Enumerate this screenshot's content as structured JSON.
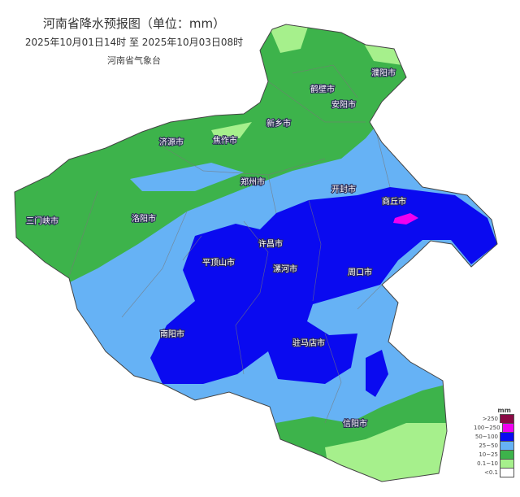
{
  "header": {
    "title": "河南省降水预报图（单位：mm）",
    "period": "2025年10月01日14时  至  2025年10月03日08时",
    "issuer": "河南省气象台"
  },
  "legend": {
    "unit": "mm",
    "items": [
      {
        "label": ">250",
        "color": "#8a0a45"
      },
      {
        "label": "100~250",
        "color": "#f000f0"
      },
      {
        "label": "50~100",
        "color": "#0a0af0"
      },
      {
        "label": "25~50",
        "color": "#66b2f5"
      },
      {
        "label": "10~25",
        "color": "#3db34b"
      },
      {
        "label": "0.1~10",
        "color": "#a6f08c"
      },
      {
        "label": "<0.1",
        "color": "#ffffff"
      }
    ]
  },
  "cities": [
    "濮阳市",
    "鹤壁市",
    "安阳市",
    "新乡市",
    "济源市",
    "焦作市",
    "郑州市",
    "开封市",
    "商丘市",
    "三门峡市",
    "洛阳市",
    "许昌市",
    "平顶山市",
    "漯河市",
    "周口市",
    "南阳市",
    "驻马店市",
    "信阳市"
  ]
}
